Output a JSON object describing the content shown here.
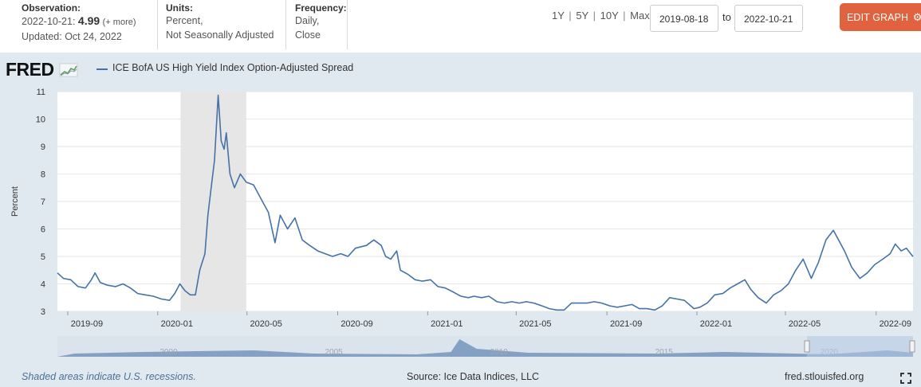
{
  "meta": {
    "observation_label": "Observation:",
    "observation_date": "2022-10-21:",
    "observation_value": "4.99",
    "observation_more": "(+ more)",
    "updated": "Updated: Oct 24, 2022",
    "units_label": "Units:",
    "units_line1": "Percent,",
    "units_line2": "Not Seasonally Adjusted",
    "frequency_label": "Frequency:",
    "frequency_line1": "Daily,",
    "frequency_line2": "Close"
  },
  "range_links": [
    "1Y",
    "5Y",
    "10Y",
    "Max"
  ],
  "range_sep": "|",
  "date_from": "2019-08-18",
  "date_to_label": "to",
  "date_to": "2022-10-21",
  "edit_button_label": "EDIT GRAPH",
  "logo_text": "FRED",
  "footer": {
    "recession_note": "Shaded areas indicate U.S. recessions.",
    "source": "Source: Ice Data Indices, LLC",
    "site": "fred.stlouisfed.org"
  },
  "colors": {
    "series": "#4572a7",
    "panel_bg": "#e1e9f0",
    "recession": "#e6e6e6",
    "edit_button": "#e1623f"
  },
  "chart_data": {
    "type": "line",
    "title": "",
    "ylabel": "Percent",
    "xlabel": "",
    "ylim": [
      3,
      11
    ],
    "yticks": [
      3,
      4,
      5,
      6,
      7,
      8,
      9,
      10,
      11
    ],
    "xlim": [
      "2019-08-18",
      "2022-10-21"
    ],
    "xticks": [
      "2019-09",
      "2020-01",
      "2020-05",
      "2020-09",
      "2021-01",
      "2021-05",
      "2021-09",
      "2022-01",
      "2022-05",
      "2022-09"
    ],
    "grid": true,
    "legend": "top-left",
    "recessions": [
      [
        "2020-02-01",
        "2020-04-30"
      ]
    ],
    "navigator_labels": [
      "2000",
      "2005",
      "2010",
      "2015",
      "2020"
    ],
    "series": [
      {
        "name": "ICE BofA US High Yield Index Option-Adjusted Spread",
        "points": [
          [
            "2019-08-18",
            4.4
          ],
          [
            "2019-08-26",
            4.2
          ],
          [
            "2019-09-05",
            4.15
          ],
          [
            "2019-09-15",
            3.9
          ],
          [
            "2019-09-25",
            3.85
          ],
          [
            "2019-10-03",
            4.15
          ],
          [
            "2019-10-08",
            4.4
          ],
          [
            "2019-10-15",
            4.05
          ],
          [
            "2019-10-25",
            3.95
          ],
          [
            "2019-11-05",
            3.9
          ],
          [
            "2019-11-15",
            4.0
          ],
          [
            "2019-11-25",
            3.85
          ],
          [
            "2019-12-05",
            3.65
          ],
          [
            "2019-12-15",
            3.6
          ],
          [
            "2019-12-26",
            3.55
          ],
          [
            "2020-01-06",
            3.45
          ],
          [
            "2020-01-17",
            3.4
          ],
          [
            "2020-01-24",
            3.65
          ],
          [
            "2020-01-31",
            4.0
          ],
          [
            "2020-02-07",
            3.75
          ],
          [
            "2020-02-14",
            3.6
          ],
          [
            "2020-02-21",
            3.6
          ],
          [
            "2020-02-27",
            4.5
          ],
          [
            "2020-03-05",
            5.1
          ],
          [
            "2020-03-09",
            6.5
          ],
          [
            "2020-03-13",
            7.4
          ],
          [
            "2020-03-18",
            8.5
          ],
          [
            "2020-03-23",
            10.87
          ],
          [
            "2020-03-27",
            9.2
          ],
          [
            "2020-03-31",
            8.9
          ],
          [
            "2020-04-03",
            9.5
          ],
          [
            "2020-04-08",
            8.0
          ],
          [
            "2020-04-14",
            7.5
          ],
          [
            "2020-04-22",
            8.0
          ],
          [
            "2020-04-30",
            7.7
          ],
          [
            "2020-05-10",
            7.6
          ],
          [
            "2020-05-20",
            7.1
          ],
          [
            "2020-05-30",
            6.6
          ],
          [
            "2020-06-08",
            5.5
          ],
          [
            "2020-06-15",
            6.5
          ],
          [
            "2020-06-25",
            6.0
          ],
          [
            "2020-07-05",
            6.4
          ],
          [
            "2020-07-15",
            5.6
          ],
          [
            "2020-07-25",
            5.4
          ],
          [
            "2020-08-05",
            5.2
          ],
          [
            "2020-08-15",
            5.1
          ],
          [
            "2020-08-25",
            5.0
          ],
          [
            "2020-09-05",
            5.1
          ],
          [
            "2020-09-15",
            5.0
          ],
          [
            "2020-09-25",
            5.3
          ],
          [
            "2020-10-10",
            5.4
          ],
          [
            "2020-10-20",
            5.6
          ],
          [
            "2020-10-30",
            5.4
          ],
          [
            "2020-11-05",
            5.0
          ],
          [
            "2020-11-12",
            4.9
          ],
          [
            "2020-11-20",
            5.2
          ],
          [
            "2020-11-25",
            4.5
          ],
          [
            "2020-12-05",
            4.35
          ],
          [
            "2020-12-15",
            4.15
          ],
          [
            "2020-12-25",
            4.1
          ],
          [
            "2021-01-05",
            4.15
          ],
          [
            "2021-01-15",
            3.9
          ],
          [
            "2021-01-25",
            3.85
          ],
          [
            "2021-02-05",
            3.7
          ],
          [
            "2021-02-15",
            3.55
          ],
          [
            "2021-02-25",
            3.5
          ],
          [
            "2021-03-05",
            3.55
          ],
          [
            "2021-03-15",
            3.5
          ],
          [
            "2021-03-25",
            3.55
          ],
          [
            "2021-04-05",
            3.35
          ],
          [
            "2021-04-15",
            3.3
          ],
          [
            "2021-04-25",
            3.35
          ],
          [
            "2021-05-05",
            3.3
          ],
          [
            "2021-05-15",
            3.35
          ],
          [
            "2021-05-25",
            3.3
          ],
          [
            "2021-06-05",
            3.2
          ],
          [
            "2021-06-15",
            3.1
          ],
          [
            "2021-06-25",
            3.05
          ],
          [
            "2021-07-05",
            3.05
          ],
          [
            "2021-07-15",
            3.3
          ],
          [
            "2021-07-25",
            3.3
          ],
          [
            "2021-08-05",
            3.3
          ],
          [
            "2021-08-15",
            3.35
          ],
          [
            "2021-08-25",
            3.3
          ],
          [
            "2021-09-05",
            3.2
          ],
          [
            "2021-09-15",
            3.15
          ],
          [
            "2021-09-25",
            3.2
          ],
          [
            "2021-10-05",
            3.25
          ],
          [
            "2021-10-15",
            3.1
          ],
          [
            "2021-10-25",
            3.1
          ],
          [
            "2021-11-05",
            3.05
          ],
          [
            "2021-11-15",
            3.2
          ],
          [
            "2021-11-25",
            3.5
          ],
          [
            "2021-12-05",
            3.45
          ],
          [
            "2021-12-15",
            3.4
          ],
          [
            "2021-12-28",
            3.1
          ],
          [
            "2022-01-05",
            3.15
          ],
          [
            "2022-01-15",
            3.3
          ],
          [
            "2022-01-25",
            3.6
          ],
          [
            "2022-02-05",
            3.65
          ],
          [
            "2022-02-15",
            3.85
          ],
          [
            "2022-02-25",
            4.0
          ],
          [
            "2022-03-07",
            4.15
          ],
          [
            "2022-03-15",
            3.8
          ],
          [
            "2022-03-25",
            3.5
          ],
          [
            "2022-04-05",
            3.3
          ],
          [
            "2022-04-15",
            3.6
          ],
          [
            "2022-04-25",
            3.75
          ],
          [
            "2022-05-05",
            4.0
          ],
          [
            "2022-05-15",
            4.5
          ],
          [
            "2022-05-25",
            4.9
          ],
          [
            "2022-06-05",
            4.2
          ],
          [
            "2022-06-15",
            4.8
          ],
          [
            "2022-06-25",
            5.6
          ],
          [
            "2022-07-05",
            5.95
          ],
          [
            "2022-07-12",
            5.6
          ],
          [
            "2022-07-20",
            5.2
          ],
          [
            "2022-07-30",
            4.6
          ],
          [
            "2022-08-10",
            4.2
          ],
          [
            "2022-08-20",
            4.4
          ],
          [
            "2022-08-30",
            4.7
          ],
          [
            "2022-09-10",
            4.9
          ],
          [
            "2022-09-20",
            5.1
          ],
          [
            "2022-09-27",
            5.45
          ],
          [
            "2022-10-05",
            5.2
          ],
          [
            "2022-10-12",
            5.3
          ],
          [
            "2022-10-21",
            4.99
          ]
        ]
      }
    ]
  }
}
